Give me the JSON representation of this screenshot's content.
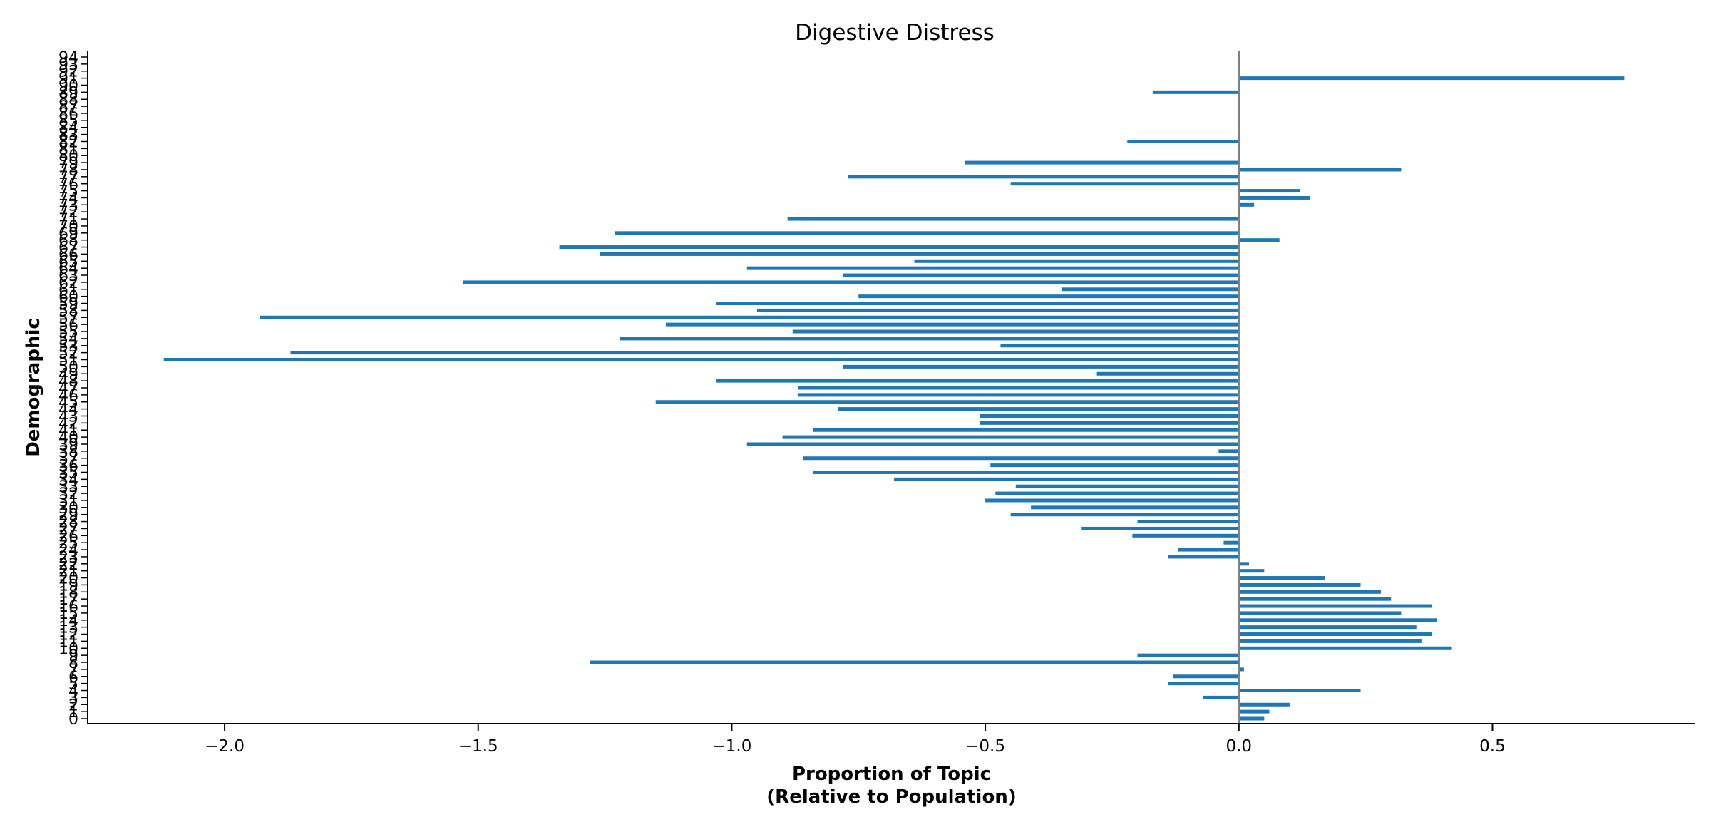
{
  "chart_data": {
    "type": "bar",
    "orientation": "horizontal",
    "title": "Digestive Distress",
    "xlabel": "Proportion of Topic\n(Relative to Population)",
    "ylabel": "Demographic",
    "xlim": [
      -2.27,
      0.9
    ],
    "x_ticks": [
      -2.0,
      -1.5,
      -1.0,
      -0.5,
      0.0,
      0.5
    ],
    "x_tick_labels": [
      "−2.0",
      "−1.5",
      "−1.0",
      "−0.5",
      "0.0",
      "0.5"
    ],
    "categories": [
      "0",
      "1",
      "2",
      "3",
      "4",
      "5",
      "6",
      "7",
      "8",
      "9",
      "10",
      "11",
      "12",
      "13",
      "14",
      "15",
      "16",
      "17",
      "18",
      "19",
      "20",
      "21",
      "22",
      "23",
      "24",
      "25",
      "26",
      "27",
      "28",
      "29",
      "30",
      "31",
      "32",
      "33",
      "34",
      "35",
      "36",
      "37",
      "38",
      "39",
      "40",
      "41",
      "42",
      "43",
      "44",
      "45",
      "46",
      "47",
      "48",
      "49",
      "50",
      "51",
      "52",
      "53",
      "54",
      "55",
      "56",
      "57",
      "58",
      "59",
      "60",
      "61",
      "62",
      "63",
      "64",
      "65",
      "66",
      "67",
      "68",
      "69",
      "70",
      "71",
      "72",
      "73",
      "74",
      "75",
      "76",
      "77",
      "78",
      "79",
      "80",
      "81",
      "82",
      "83",
      "84",
      "85",
      "86",
      "87",
      "88",
      "89",
      "90",
      "91",
      "92",
      "93",
      "94"
    ],
    "values": [
      0.05,
      0.06,
      0.1,
      -0.07,
      0.24,
      -0.14,
      -0.13,
      0.01,
      -1.28,
      -0.2,
      0.42,
      0.36,
      0.38,
      0.35,
      0.39,
      0.32,
      0.38,
      0.3,
      0.28,
      0.24,
      0.17,
      0.05,
      0.02,
      -0.14,
      -0.12,
      -0.03,
      -0.21,
      -0.31,
      -0.2,
      -0.45,
      -0.41,
      -0.5,
      -0.48,
      -0.44,
      -0.68,
      -0.84,
      -0.49,
      -0.86,
      -0.04,
      -0.97,
      -0.9,
      -0.84,
      -0.51,
      -0.51,
      -0.79,
      -1.15,
      -0.87,
      -0.87,
      -1.03,
      -0.28,
      -0.78,
      -2.12,
      -1.87,
      -0.47,
      -1.22,
      -0.88,
      -1.13,
      -1.93,
      -0.95,
      -1.03,
      -0.75,
      -0.35,
      -1.53,
      -0.78,
      -0.97,
      -0.64,
      -1.26,
      -1.34,
      0.08,
      -1.23,
      0.0,
      -0.89,
      0.0,
      0.03,
      0.14,
      0.12,
      -0.45,
      -0.77,
      0.32,
      -0.54,
      0.0,
      0.0,
      -0.22,
      0.0,
      0.0,
      0.0,
      0.0,
      0.0,
      0.0,
      -0.17,
      0.0,
      0.76,
      0.0,
      0.0,
      0.0
    ],
    "bar_color": "#1f77b4",
    "zero_line_color": "#808080",
    "grid": false,
    "legend": "none"
  }
}
